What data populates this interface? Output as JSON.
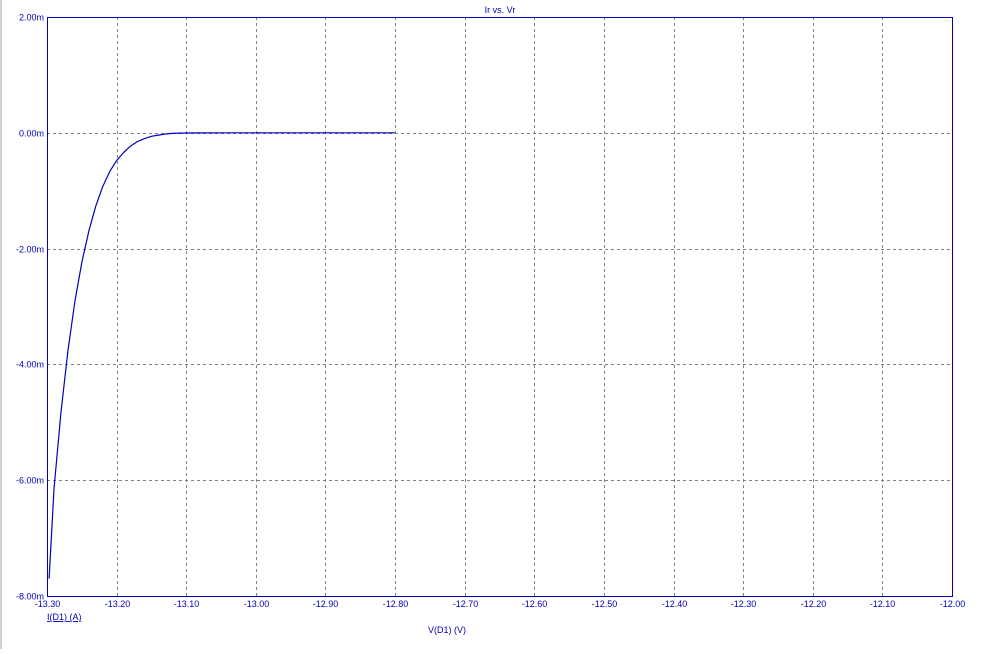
{
  "chart_data": {
    "type": "line",
    "title": "Ir vs. Vr",
    "xlabel": "V(D1) (V)",
    "ylabel": "I(D1) (A)",
    "xlim": [
      -13.3,
      -12.0
    ],
    "ylim": [
      -8.0,
      2.0
    ],
    "y_unit_suffix": "m",
    "x_ticks": [
      -13.3,
      -13.2,
      -13.1,
      -13.0,
      -12.9,
      -12.8,
      -12.7,
      -12.6,
      -12.5,
      -12.4,
      -12.3,
      -12.2,
      -12.1,
      -12.0
    ],
    "x_tick_labels": [
      "-13.30",
      "-13.20",
      "-13.10",
      "-13.00",
      "-12.90",
      "-12.80",
      "-12.70",
      "-12.60",
      "-12.50",
      "-12.40",
      "-12.30",
      "-12.20",
      "-12.10",
      "-12.00"
    ],
    "y_ticks": [
      2.0,
      0.0,
      -2.0,
      -4.0,
      -6.0,
      -8.0
    ],
    "y_tick_labels": [
      "2.00m",
      "0.00m",
      "-2.00m",
      "-4.00m",
      "-6.00m",
      "-8.00m"
    ],
    "grid": true,
    "series": [
      {
        "name": "I(D1) (A)",
        "color": "#0000c0",
        "x": [
          -13.297,
          -13.29,
          -13.28,
          -13.27,
          -13.26,
          -13.25,
          -13.24,
          -13.23,
          -13.22,
          -13.21,
          -13.2,
          -13.19,
          -13.18,
          -13.17,
          -13.16,
          -13.15,
          -13.14,
          -13.13,
          -13.12,
          -13.11,
          -13.1,
          -13.08,
          -13.05,
          -13.0,
          -12.95,
          -12.9,
          -12.85,
          -12.8
        ],
        "y": [
          -7.7,
          -6.15,
          -4.84,
          -3.77,
          -2.92,
          -2.24,
          -1.7,
          -1.27,
          -0.93,
          -0.67,
          -0.48,
          -0.34,
          -0.23,
          -0.15,
          -0.1,
          -0.06,
          -0.04,
          -0.02,
          -0.01,
          -0.005,
          -0.003,
          -0.001,
          0.0,
          0.0,
          0.0,
          0.0,
          0.0,
          0.0
        ]
      }
    ]
  },
  "colors": {
    "axis": "#0000c0",
    "grid": "#808080",
    "label_text": "#0000c0",
    "background": "#ffffff"
  }
}
